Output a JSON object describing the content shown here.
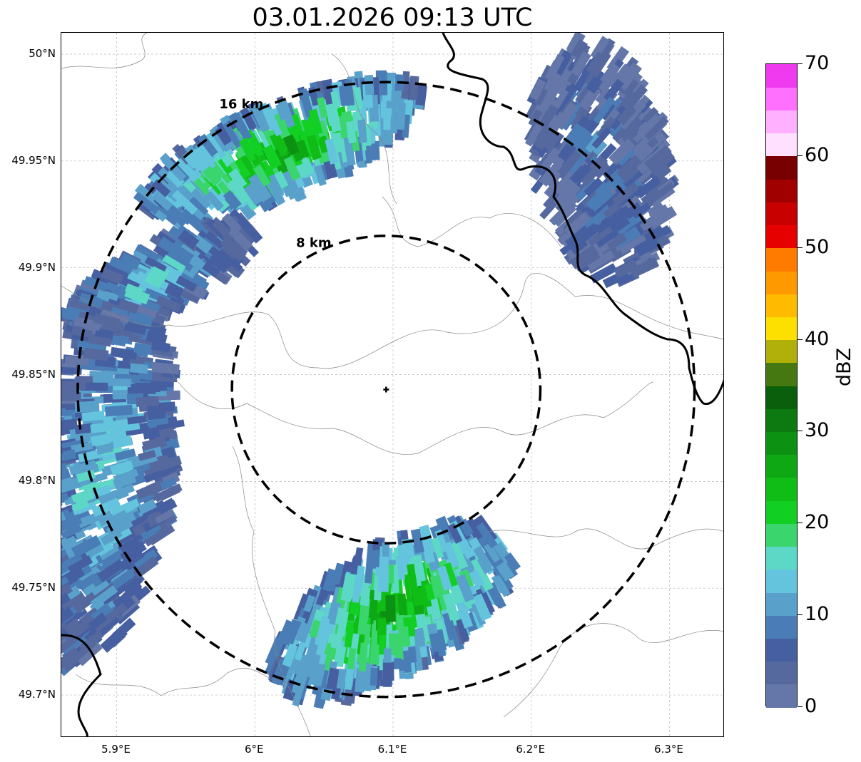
{
  "title": "03.01.2026 09:13 UTC",
  "map": {
    "lon_min": 5.86,
    "lon_max": 6.34,
    "lat_min": 49.68,
    "lat_max": 50.01,
    "radar_site": {
      "lon": 6.095,
      "lat": 49.843
    },
    "range_rings": [
      {
        "label": "8 km",
        "radius_km": 8
      },
      {
        "label": "16 km",
        "radius_km": 16
      }
    ],
    "lat_ticks": [
      {
        "value": 50.0,
        "label": "50°N"
      },
      {
        "value": 49.95,
        "label": "49.95°N"
      },
      {
        "value": 49.9,
        "label": "49.9°N"
      },
      {
        "value": 49.85,
        "label": "49.85°N"
      },
      {
        "value": 49.8,
        "label": "49.8°N"
      },
      {
        "value": 49.75,
        "label": "49.75°N"
      },
      {
        "value": 49.7,
        "label": "49.7°N"
      }
    ],
    "lon_ticks": [
      {
        "value": 5.9,
        "label": "5.9°E"
      },
      {
        "value": 6.0,
        "label": "6°E"
      },
      {
        "value": 6.1,
        "label": "6.1°E"
      },
      {
        "value": 6.2,
        "label": "6.2°E"
      },
      {
        "value": 6.3,
        "label": "6.3°E"
      }
    ],
    "gridlines": true,
    "echo_regions": [
      {
        "name": "northwest-band-upper",
        "lon": 6.02,
        "lat": 49.955,
        "reflectivity_dbz": 22
      },
      {
        "name": "northwest-band-lower",
        "lon": 5.93,
        "lat": 49.895,
        "reflectivity_dbz": 12
      },
      {
        "name": "west-edge",
        "lon": 5.89,
        "lat": 49.8,
        "reflectivity_dbz": 12
      },
      {
        "name": "northeast-cell",
        "lon": 6.25,
        "lat": 49.95,
        "reflectivity_dbz": 6
      },
      {
        "name": "south-cell",
        "lon": 6.1,
        "lat": 49.74,
        "reflectivity_dbz": 22
      }
    ]
  },
  "colorbar": {
    "label": "dBZ",
    "ticks": [
      "0",
      "10",
      "20",
      "30",
      "40",
      "50",
      "60",
      "70"
    ],
    "min": 0,
    "max": 70,
    "step": 2.5,
    "colors": [
      "#6577a8",
      "#55699f",
      "#465fa0",
      "#4a7db5",
      "#59a1cb",
      "#64c3dd",
      "#5dd8c6",
      "#3bd56e",
      "#12cf24",
      "#10bd17",
      "#0ea814",
      "#0c9112",
      "#0c7a10",
      "#0a5f0d",
      "#467812",
      "#afb00a",
      "#fde000",
      "#ffbb00",
      "#ff9900",
      "#ff7b00",
      "#e60000",
      "#c80000",
      "#a00000",
      "#780000",
      "#ffe0ff",
      "#ffb0ff",
      "#ff70ff",
      "#f03af0"
    ]
  }
}
